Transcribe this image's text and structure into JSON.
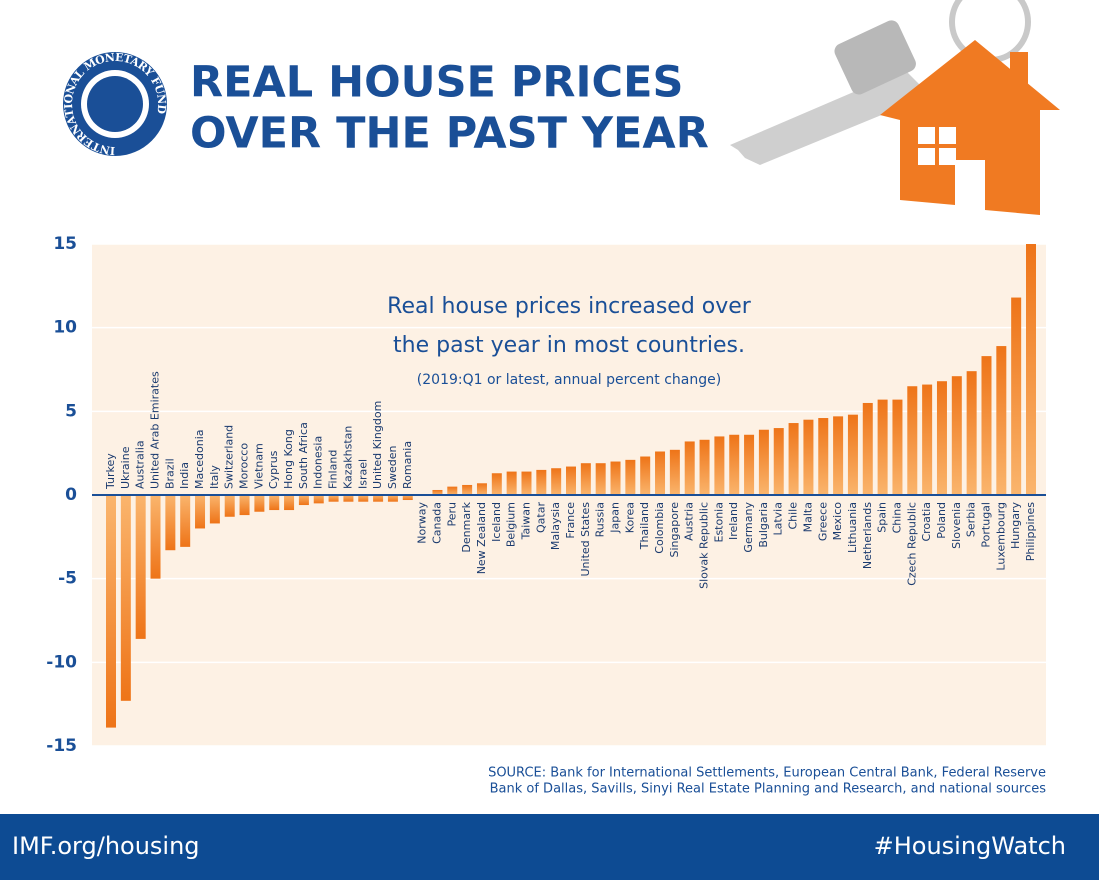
{
  "logo": "INTERNATIONAL MONETARY FUND",
  "chart_data": {
    "type": "bar",
    "title": [
      "REAL HOUSE PRICES",
      "OVER THE PAST YEAR"
    ],
    "annotation": [
      "Real house prices increased over",
      "the past year in most countries."
    ],
    "note": "(2019:Q1 or latest, annual percent change)",
    "categories": [
      "Turkey",
      "Ukraine",
      "Australia",
      "United Arab Emirates",
      "Brazil",
      "India",
      "Macedonia",
      "Italy",
      "Switzerland",
      "Morocco",
      "Vietnam",
      "Cyprus",
      "Hong Kong",
      "South Africa",
      "Indonesia",
      "Finland",
      "Kazakhstan",
      "Israel",
      "United Kingdom",
      "Sweden",
      "Romania",
      "Norway",
      "Canada",
      "Peru",
      "Denmark",
      "New Zealand",
      "Iceland",
      "Belgium",
      "Taiwan",
      "Qatar",
      "Malaysia",
      "France",
      "United States",
      "Russia",
      "Japan",
      "Korea",
      "Thailand",
      "Colombia",
      "Singapore",
      "Austria",
      "Slovak Republic",
      "Estonia",
      "Ireland",
      "Germany",
      "Bulgaria",
      "Latvia",
      "Chile",
      "Malta",
      "Greece",
      "Mexico",
      "Lithuania",
      "Netherlands",
      "Spain",
      "China",
      "Czech Republic",
      "Croatia",
      "Poland",
      "Slovenia",
      "Serbia",
      "Portugal",
      "Luxembourg",
      "Hungary",
      "Philippines"
    ],
    "values": [
      -13.9,
      -12.3,
      -8.6,
      -5.0,
      -3.3,
      -3.1,
      -2.0,
      -1.7,
      -1.3,
      -1.2,
      -1.0,
      -0.9,
      -0.9,
      -0.6,
      -0.5,
      -0.4,
      -0.4,
      -0.4,
      -0.4,
      -0.4,
      -0.3,
      0.0,
      0.3,
      0.5,
      0.6,
      0.7,
      1.3,
      1.4,
      1.4,
      1.5,
      1.6,
      1.7,
      1.9,
      1.9,
      2.0,
      2.1,
      2.3,
      2.6,
      2.7,
      3.2,
      3.3,
      3.5,
      3.6,
      3.6,
      3.9,
      4.0,
      4.3,
      4.5,
      4.6,
      4.7,
      4.8,
      5.5,
      5.7,
      5.7,
      6.5,
      6.6,
      6.8,
      7.1,
      7.4,
      8.3,
      8.9,
      11.8,
      15.0
    ],
    "color": "#f4862a",
    "ylim": [
      -15,
      15
    ],
    "yticks": [
      15,
      10,
      5,
      0,
      -5,
      -10,
      -15
    ],
    "grid": true,
    "source": [
      "SOURCE: Bank for International Settlements, European Central Bank, Federal Reserve",
      "Bank of Dallas, Savills, Sinyi Real Estate Planning and Research, and national sources"
    ]
  },
  "footer": {
    "left": "IMF.org/housing",
    "right": "#HousingWatch"
  }
}
